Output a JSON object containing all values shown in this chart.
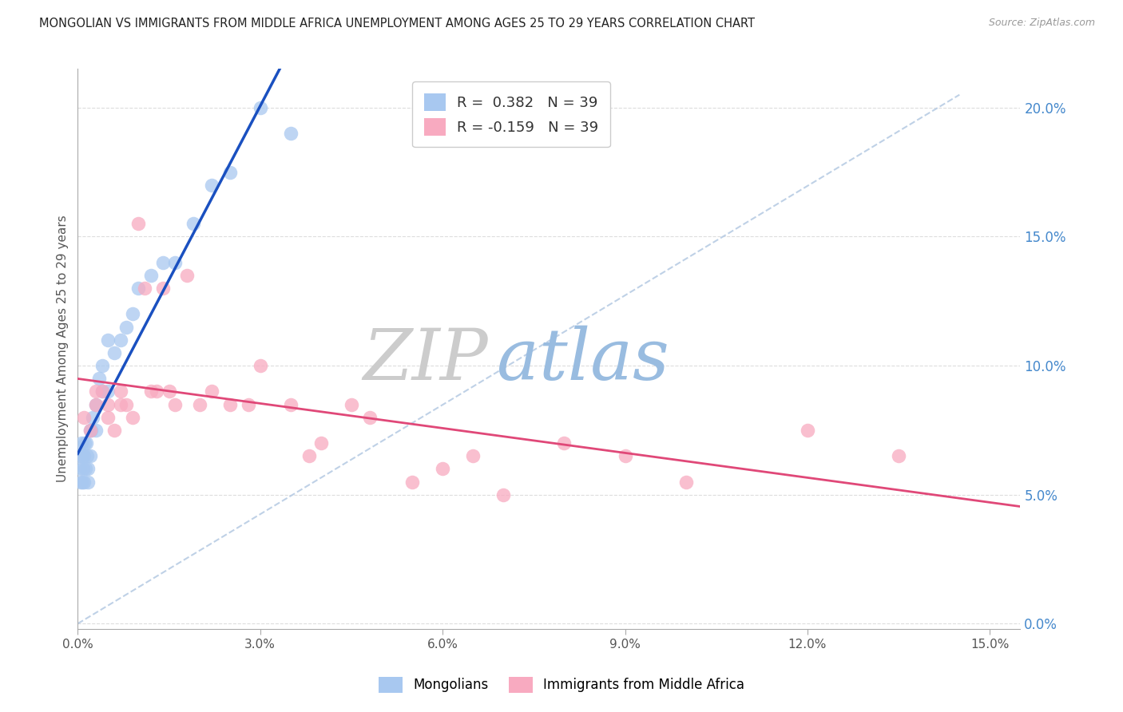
{
  "title": "MONGOLIAN VS IMMIGRANTS FROM MIDDLE AFRICA UNEMPLOYMENT AMONG AGES 25 TO 29 YEARS CORRELATION CHART",
  "source": "Source: ZipAtlas.com",
  "ylabel": "Unemployment Among Ages 25 to 29 years",
  "xlim": [
    0.0,
    0.155
  ],
  "ylim": [
    -0.002,
    0.215
  ],
  "xticks": [
    0.0,
    0.03,
    0.06,
    0.09,
    0.12,
    0.15
  ],
  "xtick_labels": [
    "0.0%",
    "3.0%",
    "6.0%",
    "9.0%",
    "12.0%",
    "15.0%"
  ],
  "yticks_right": [
    0.0,
    0.05,
    0.1,
    0.15,
    0.2
  ],
  "ytick_labels_right": [
    "0.0%",
    "5.0%",
    "10.0%",
    "15.0%",
    "20.0%"
  ],
  "r_mongolian": 0.382,
  "n_mongolian": 39,
  "r_africa": -0.159,
  "n_africa": 39,
  "legend_label_mongolian": "Mongolians",
  "legend_label_africa": "Immigrants from Middle Africa",
  "color_mongolian": "#a8c8f0",
  "color_africa": "#f8aac0",
  "color_reg_mongolian": "#1a50c0",
  "color_reg_africa": "#e04878",
  "color_ref_line": "#b8cce4",
  "mongolian_x": [
    0.0002,
    0.0004,
    0.0005,
    0.0006,
    0.0007,
    0.0008,
    0.0009,
    0.001,
    0.001,
    0.0012,
    0.0013,
    0.0014,
    0.0015,
    0.0016,
    0.0017,
    0.002,
    0.002,
    0.0022,
    0.0025,
    0.003,
    0.003,
    0.0035,
    0.004,
    0.004,
    0.005,
    0.005,
    0.006,
    0.007,
    0.008,
    0.009,
    0.01,
    0.012,
    0.014,
    0.016,
    0.019,
    0.022,
    0.025,
    0.03,
    0.035
  ],
  "mongolian_y": [
    0.065,
    0.06,
    0.055,
    0.07,
    0.065,
    0.055,
    0.06,
    0.065,
    0.055,
    0.07,
    0.06,
    0.07,
    0.065,
    0.06,
    0.055,
    0.075,
    0.065,
    0.075,
    0.08,
    0.085,
    0.075,
    0.095,
    0.09,
    0.1,
    0.09,
    0.11,
    0.105,
    0.11,
    0.115,
    0.12,
    0.13,
    0.135,
    0.14,
    0.14,
    0.155,
    0.17,
    0.175,
    0.2,
    0.19
  ],
  "africa_x": [
    0.001,
    0.002,
    0.003,
    0.003,
    0.004,
    0.005,
    0.005,
    0.006,
    0.007,
    0.007,
    0.008,
    0.009,
    0.01,
    0.011,
    0.012,
    0.013,
    0.014,
    0.015,
    0.016,
    0.018,
    0.02,
    0.022,
    0.025,
    0.028,
    0.03,
    0.035,
    0.038,
    0.04,
    0.045,
    0.048,
    0.055,
    0.06,
    0.065,
    0.07,
    0.08,
    0.09,
    0.1,
    0.12,
    0.135
  ],
  "africa_y": [
    0.08,
    0.075,
    0.09,
    0.085,
    0.09,
    0.085,
    0.08,
    0.075,
    0.09,
    0.085,
    0.085,
    0.08,
    0.155,
    0.13,
    0.09,
    0.09,
    0.13,
    0.09,
    0.085,
    0.135,
    0.085,
    0.09,
    0.085,
    0.085,
    0.1,
    0.085,
    0.065,
    0.07,
    0.085,
    0.08,
    0.055,
    0.06,
    0.065,
    0.05,
    0.07,
    0.065,
    0.055,
    0.075,
    0.065
  ],
  "ref_line_x": [
    0.0,
    0.145
  ],
  "ref_line_y": [
    0.0,
    0.205
  ]
}
